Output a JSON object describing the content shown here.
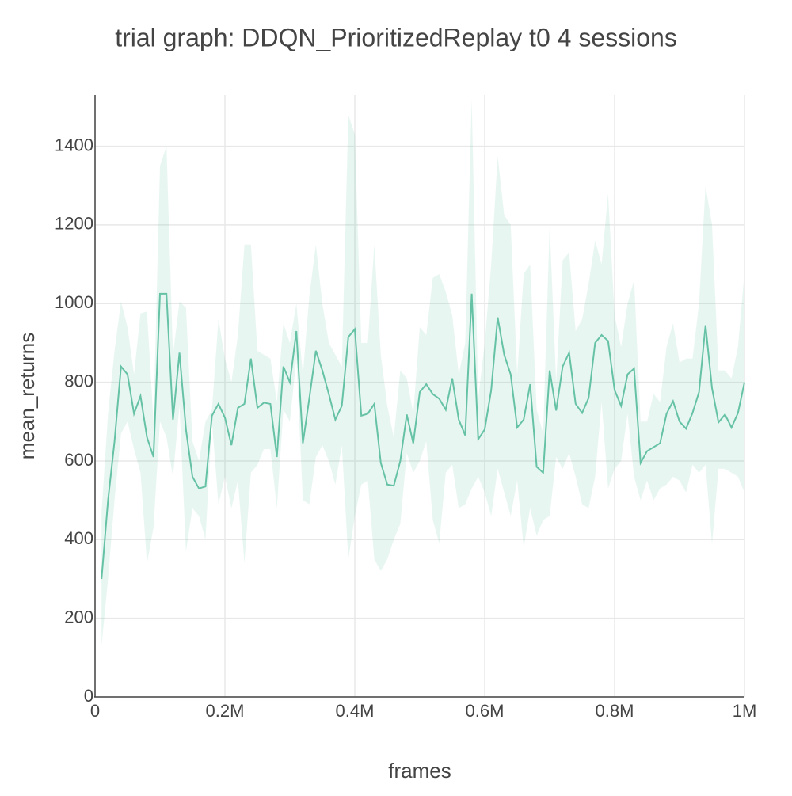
{
  "chart_data": {
    "type": "line",
    "title": "trial graph: DDQN_PrioritizedReplay t0 4 sessions",
    "x_label": "frames",
    "y_label": "mean_returns",
    "color": "#66c2a5",
    "grid": true,
    "xlim": [
      0,
      1000000
    ],
    "xticks": [
      0,
      {
        "value": 200000,
        "label": "0.2M"
      },
      {
        "value": 400000,
        "label": "0.4M"
      },
      {
        "value": 600000,
        "label": "0.6M"
      },
      {
        "value": 800000,
        "label": "0.8M"
      },
      {
        "value": 1000000,
        "label": "1M"
      }
    ],
    "ylim": [
      0,
      1530
    ],
    "yticks": [
      0,
      200,
      400,
      600,
      800,
      1000,
      1200,
      1400
    ],
    "x": [
      10000,
      20000,
      30000,
      40000,
      50000,
      60000,
      70000,
      80000,
      90000,
      100000,
      110000,
      120000,
      130000,
      140000,
      150000,
      160000,
      170000,
      180000,
      190000,
      200000,
      210000,
      220000,
      230000,
      240000,
      250000,
      260000,
      270000,
      280000,
      290000,
      300000,
      310000,
      320000,
      330000,
      340000,
      350000,
      360000,
      370000,
      380000,
      390000,
      400000,
      410000,
      420000,
      430000,
      440000,
      450000,
      460000,
      470000,
      480000,
      490000,
      500000,
      510000,
      520000,
      530000,
      540000,
      550000,
      560000,
      570000,
      580000,
      590000,
      600000,
      610000,
      620000,
      630000,
      640000,
      650000,
      660000,
      670000,
      680000,
      690000,
      700000,
      710000,
      720000,
      730000,
      740000,
      750000,
      760000,
      770000,
      780000,
      790000,
      800000,
      810000,
      820000,
      830000,
      840000,
      850000,
      860000,
      870000,
      880000,
      890000,
      900000,
      910000,
      920000,
      930000,
      940000,
      950000,
      960000,
      970000,
      980000,
      990000,
      1000000
    ],
    "values": [
      300,
      500,
      650,
      840,
      820,
      720,
      765,
      660,
      610,
      1025,
      1025,
      705,
      875,
      680,
      560,
      530,
      535,
      715,
      745,
      710,
      640,
      735,
      745,
      860,
      735,
      748,
      745,
      610,
      840,
      800,
      930,
      645,
      760,
      880,
      830,
      770,
      705,
      740,
      915,
      935,
      715,
      720,
      745,
      595,
      540,
      537,
      600,
      718,
      645,
      775,
      795,
      770,
      758,
      730,
      810,
      705,
      665,
      1025,
      655,
      680,
      780,
      965,
      870,
      820,
      685,
      705,
      795,
      585,
      570,
      830,
      728,
      840,
      875,
      745,
      722,
      760,
      900,
      920,
      905,
      780,
      740,
      820,
      835,
      595,
      625,
      635,
      645,
      720,
      752,
      700,
      682,
      722,
      775,
      945,
      785,
      698,
      718,
      685,
      722,
      800
    ],
    "band_upper": [
      470,
      720,
      880,
      1005,
      940,
      820,
      975,
      980,
      700,
      1350,
      1400,
      870,
      1005,
      990,
      650,
      600,
      700,
      730,
      960,
      860,
      800,
      920,
      1150,
      1150,
      880,
      870,
      860,
      750,
      950,
      900,
      1000,
      820,
      1020,
      1150,
      1000,
      900,
      870,
      840,
      1480,
      1430,
      900,
      900,
      1150,
      870,
      740,
      660,
      830,
      810,
      720,
      940,
      920,
      1065,
      1075,
      1030,
      970,
      820,
      900,
      1520,
      760,
      900,
      1100,
      1375,
      1225,
      1200,
      820,
      1075,
      1100,
      730,
      670,
      1200,
      800,
      1110,
      1130,
      930,
      960,
      1050,
      1160,
      1100,
      1280,
      970,
      890,
      1000,
      1060,
      700,
      700,
      770,
      750,
      890,
      950,
      850,
      860,
      860,
      1000,
      1300,
      1200,
      830,
      830,
      810,
      890,
      1080
    ],
    "band_lower": [
      130,
      300,
      500,
      670,
      700,
      630,
      570,
      340,
      430,
      700,
      660,
      560,
      740,
      370,
      480,
      460,
      400,
      700,
      490,
      560,
      480,
      550,
      340,
      570,
      590,
      630,
      630,
      480,
      730,
      700,
      860,
      500,
      490,
      610,
      640,
      600,
      540,
      640,
      350,
      460,
      540,
      550,
      350,
      320,
      350,
      400,
      440,
      620,
      570,
      600,
      650,
      450,
      390,
      570,
      590,
      480,
      490,
      530,
      560,
      520,
      460,
      580,
      520,
      460,
      550,
      380,
      480,
      410,
      450,
      460,
      610,
      580,
      620,
      560,
      490,
      480,
      560,
      750,
      530,
      580,
      600,
      720,
      560,
      500,
      550,
      500,
      530,
      540,
      560,
      550,
      520,
      590,
      570,
      590,
      390,
      580,
      580,
      570,
      560,
      520
    ]
  }
}
